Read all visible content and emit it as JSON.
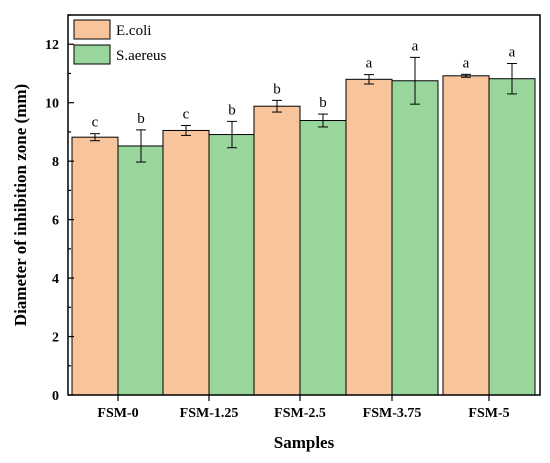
{
  "chart_data": {
    "type": "bar",
    "categories": [
      "FSM-0",
      "FSM-1.25",
      "FSM-2.5",
      "FSM-3.75",
      "FSM-5"
    ],
    "series": [
      {
        "name": "E.coli",
        "color": "#F8C49C",
        "values": [
          8.82,
          9.05,
          9.88,
          10.8,
          10.92
        ],
        "errors": [
          0.12,
          0.17,
          0.2,
          0.16,
          0.05
        ],
        "labels": [
          "c",
          "c",
          "b",
          "a",
          "a"
        ]
      },
      {
        "name": "S.aereus",
        "color": "#98D69C",
        "values": [
          8.52,
          8.91,
          9.39,
          10.75,
          10.82
        ],
        "errors": [
          0.55,
          0.45,
          0.22,
          0.8,
          0.52
        ],
        "labels": [
          "b",
          "b",
          "b",
          "a",
          "a"
        ]
      }
    ],
    "xlabel": "Samples",
    "ylabel": "Diameter of inhibition zone (mm)",
    "ylim": [
      0,
      13
    ],
    "yticks": [
      0,
      2,
      4,
      6,
      8,
      10,
      12
    ],
    "legend_position": "top-left",
    "grid": false
  }
}
